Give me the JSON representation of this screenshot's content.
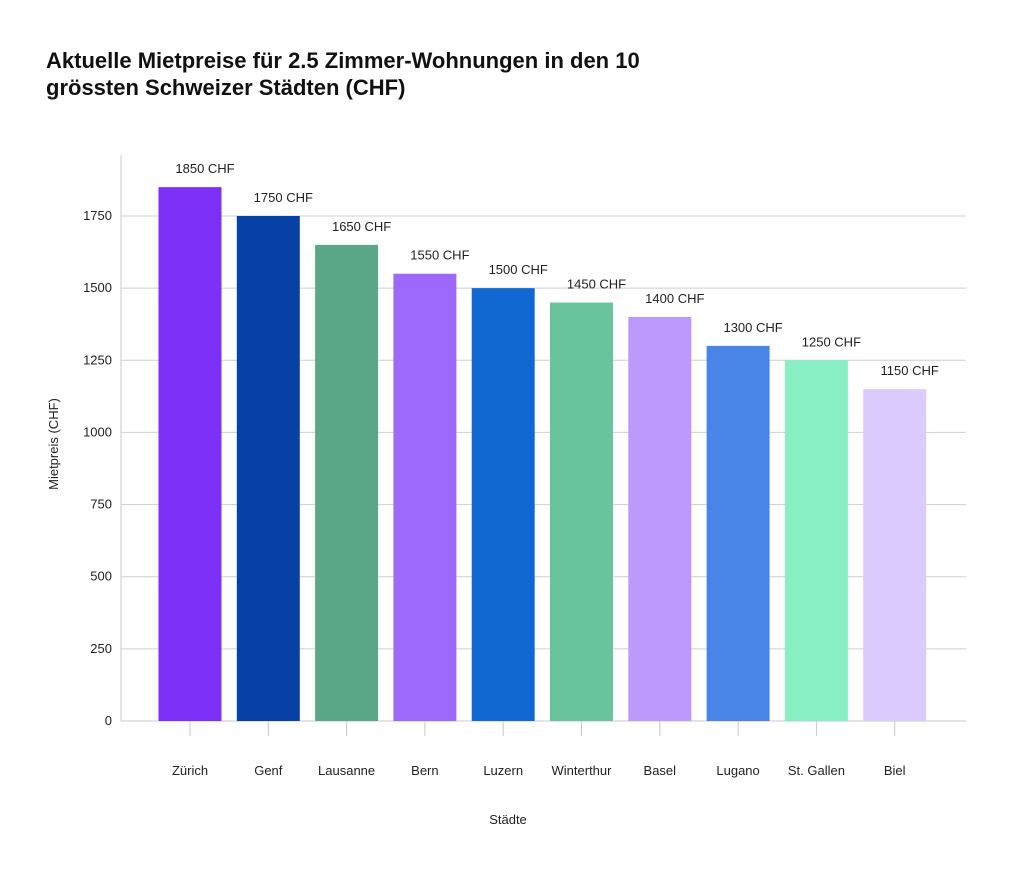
{
  "chart_data": {
    "type": "bar",
    "title": "Aktuelle Mietpreise für 2.5 Zimmer-Wohnungen in den 10 grössten Schweizer Städten (CHF)",
    "xlabel": "Städte",
    "ylabel": "Mietpreis (CHF)",
    "categories": [
      "Zürich",
      "Genf",
      "Lausanne",
      "Bern",
      "Luzern",
      "Winterthur",
      "Basel",
      "Lugano",
      "St. Gallen",
      "Biel"
    ],
    "values": [
      1850,
      1750,
      1650,
      1550,
      1500,
      1450,
      1400,
      1300,
      1250,
      1150
    ],
    "data_labels": [
      "1850 CHF",
      "1750 CHF",
      "1650 CHF",
      "1550 CHF",
      "1500 CHF",
      "1450 CHF",
      "1400 CHF",
      "1300 CHF",
      "1250 CHF",
      "1150 CHF"
    ],
    "colors": [
      "#7b2ff7",
      "#0741a6",
      "#5aa887",
      "#9d69fb",
      "#1268d3",
      "#69c39d",
      "#bd99fd",
      "#4885e6",
      "#87efc3",
      "#dccbff"
    ],
    "ylim": [
      0,
      1850
    ],
    "yticks": [
      0,
      250,
      500,
      750,
      1000,
      1250,
      1500,
      1750
    ],
    "grid": true,
    "legend": "none"
  }
}
